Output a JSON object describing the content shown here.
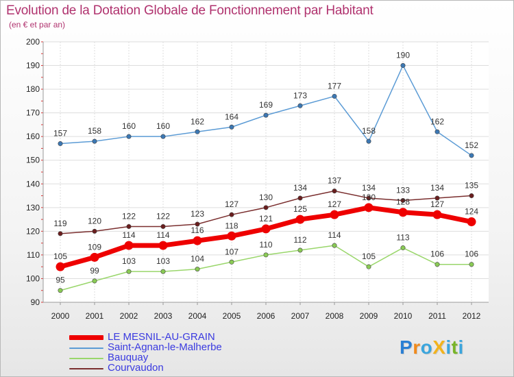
{
  "header": {
    "title": "Evolution de la Dotation Globale de Fonctionnement par Habitant",
    "subtitle": "(en € et par an)"
  },
  "brand": {
    "name": "ProXiti",
    "letters": [
      "P",
      "r",
      "o",
      "X",
      "i",
      "t",
      "i"
    ],
    "colors": [
      "#2a7fd4",
      "#f08a1c",
      "#3aa5dd",
      "#f2b31c",
      "#3aa5dd",
      "#78b428",
      "#3aa5dd"
    ]
  },
  "chart_data": {
    "type": "line",
    "title": "Evolution de la Dotation Globale de Fonctionnement par Habitant",
    "subtitle": "(en € et par an)",
    "xlabel": "",
    "ylabel": "",
    "ylim": [
      90,
      200
    ],
    "yticks": [
      90,
      100,
      110,
      120,
      130,
      140,
      150,
      160,
      170,
      180,
      190,
      200
    ],
    "grid": true,
    "legend_position": "bottom-left",
    "categories": [
      "2000",
      "2001",
      "2002",
      "2003",
      "2004",
      "2005",
      "2006",
      "2007",
      "2008",
      "2009",
      "2010",
      "2011",
      "2012"
    ],
    "series": [
      {
        "name": "Saint-Agnan-le-Malherbe",
        "color": "#5b9bd5",
        "marker_color": "#3c78b4",
        "values": [
          157,
          158,
          160,
          160,
          162,
          164,
          169,
          173,
          177,
          158,
          190,
          162,
          152
        ]
      },
      {
        "name": "Courvaudon",
        "color": "#7a2e2e",
        "marker_color": "#6a1e1e",
        "values": [
          119,
          120,
          122,
          122,
          123,
          127,
          130,
          134,
          137,
          134,
          133,
          134,
          135
        ]
      },
      {
        "name": "LE MESNIL-AU-GRAIN",
        "color": "#ee0000",
        "marker_color": "#ee0000",
        "values": [
          105,
          109,
          114,
          114,
          116,
          118,
          121,
          125,
          127,
          130,
          128,
          127,
          124
        ]
      },
      {
        "name": "Bauquay",
        "color": "#99d66a",
        "marker_color": "#8acb55",
        "values": [
          95,
          99,
          103,
          103,
          104,
          107,
          110,
          112,
          114,
          105,
          113,
          106,
          106
        ]
      }
    ],
    "legend": [
      "LE MESNIL-AU-GRAIN",
      "Saint-Agnan-le-Malherbe",
      "Bauquay",
      "Courvaudon"
    ]
  }
}
